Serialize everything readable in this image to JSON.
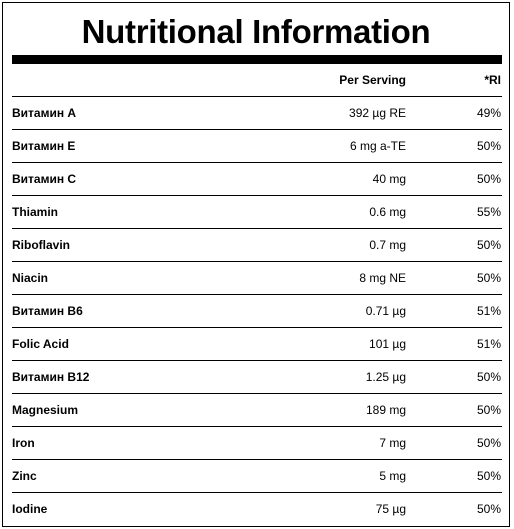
{
  "title": "Nutritional Information",
  "header": {
    "name": "",
    "per_serving": "Per Serving",
    "ri": "*RI"
  },
  "rows": [
    {
      "name": "Витамин A",
      "per_serving": "392 µg RE",
      "ri": "49%"
    },
    {
      "name": "Витамин E",
      "per_serving": "6 mg a-TE",
      "ri": "50%"
    },
    {
      "name": "Витамин C",
      "per_serving": "40 mg",
      "ri": "50%"
    },
    {
      "name": "Thiamin",
      "per_serving": "0.6 mg",
      "ri": "55%"
    },
    {
      "name": "Riboflavin",
      "per_serving": "0.7 mg",
      "ri": "50%"
    },
    {
      "name": "Niacin",
      "per_serving": "8 mg NE",
      "ri": "50%"
    },
    {
      "name": "Витамин B6",
      "per_serving": "0.71 µg",
      "ri": "51%"
    },
    {
      "name": "Folic Acid",
      "per_serving": "101 µg",
      "ri": "51%"
    },
    {
      "name": "Витамин B12",
      "per_serving": "1.25 µg",
      "ri": "50%"
    },
    {
      "name": "Magnesium",
      "per_serving": "189 mg",
      "ri": "50%"
    },
    {
      "name": "Iron",
      "per_serving": "7 mg",
      "ri": "50%"
    },
    {
      "name": "Zinc",
      "per_serving": "5 mg",
      "ri": "50%"
    },
    {
      "name": "Iodine",
      "per_serving": "75 µg",
      "ri": "50%"
    }
  ]
}
